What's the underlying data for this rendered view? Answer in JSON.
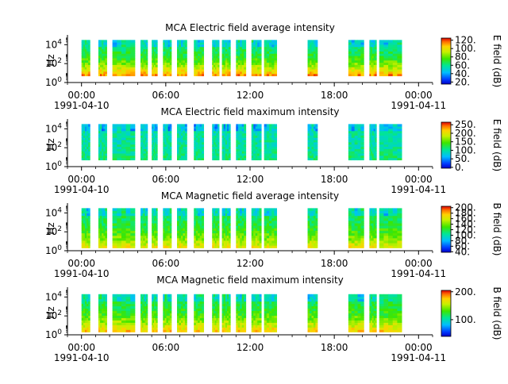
{
  "chart_data": [
    {
      "type": "heatmap",
      "title": "MCA  Electric field average intensity",
      "ylabel": "Hz",
      "colorbar_label": "E field (dB)",
      "colorbar_ticks": [
        "20.",
        "40.",
        "60.",
        "80.",
        "100.",
        "120."
      ],
      "colorbar_range": [
        15,
        125
      ],
      "colormap": "rainbow",
      "x_ticks": [
        "00:00",
        "06:00",
        "12:00",
        "18:00",
        "00:00"
      ],
      "x_dates": [
        "1991-04-10",
        "1991-04-11"
      ],
      "y_ticks": [
        "10^0",
        "10^2",
        "10^4"
      ],
      "y_range_log10": [
        0,
        4.7
      ],
      "xlim_hours": [
        -1,
        25
      ],
      "data_freq_log10_range": [
        0.7,
        4.5
      ],
      "segments_hours": [
        [
          0.0,
          0.6
        ],
        [
          1.2,
          1.8
        ],
        [
          2.2,
          3.8
        ],
        [
          4.2,
          4.7
        ],
        [
          5.0,
          5.4
        ],
        [
          5.8,
          6.4
        ],
        [
          6.8,
          7.5
        ],
        [
          8.0,
          8.7
        ],
        [
          9.3,
          9.8
        ],
        [
          10.0,
          10.6
        ],
        [
          11.0,
          11.7
        ],
        [
          12.1,
          12.8
        ],
        [
          13.0,
          13.9
        ],
        [
          16.1,
          16.8
        ],
        [
          19.0,
          20.1
        ],
        [
          20.5,
          21.0
        ],
        [
          21.2,
          22.8
        ]
      ],
      "base_level": 62,
      "low_freq_level": 112
    },
    {
      "type": "heatmap",
      "title": "MCA  Electric field maximum intensity",
      "ylabel": "Hz",
      "colorbar_label": "E field (dB)",
      "colorbar_ticks": [
        "0.",
        "50.",
        "100.",
        "150.",
        "200.",
        "250."
      ],
      "colorbar_range": [
        -5,
        265
      ],
      "colormap": "rainbow",
      "x_ticks": [
        "00:00",
        "06:00",
        "12:00",
        "18:00",
        "00:00"
      ],
      "x_dates": [
        "1991-04-10",
        "1991-04-11"
      ],
      "y_ticks": [
        "10^0",
        "10^2",
        "10^4"
      ],
      "y_range_log10": [
        0,
        4.7
      ],
      "xlim_hours": [
        -1,
        25
      ],
      "data_freq_log10_range": [
        0.7,
        4.5
      ],
      "segments_hours": [
        [
          0.0,
          0.6
        ],
        [
          1.2,
          1.8
        ],
        [
          2.2,
          3.8
        ],
        [
          4.2,
          4.7
        ],
        [
          5.0,
          5.4
        ],
        [
          5.8,
          6.4
        ],
        [
          6.8,
          7.5
        ],
        [
          8.0,
          8.7
        ],
        [
          9.3,
          9.8
        ],
        [
          10.0,
          10.6
        ],
        [
          11.0,
          11.7
        ],
        [
          12.1,
          12.8
        ],
        [
          13.0,
          13.9
        ],
        [
          16.1,
          16.8
        ],
        [
          19.0,
          20.1
        ],
        [
          20.5,
          21.0
        ],
        [
          21.2,
          22.8
        ]
      ],
      "base_level": 95,
      "low_freq_level": 110
    },
    {
      "type": "heatmap",
      "title": "MCA  Magnetic field average intensity",
      "ylabel": "Hz",
      "colorbar_label": "B field (dB)",
      "colorbar_ticks": [
        "40.",
        "60.",
        "80.",
        "100.",
        "120.",
        "140.",
        "160.",
        "180.",
        "200."
      ],
      "colorbar_range": [
        38,
        205
      ],
      "colormap": "rainbow",
      "x_ticks": [
        "00:00",
        "06:00",
        "12:00",
        "18:00",
        "00:00"
      ],
      "x_dates": [
        "1991-04-10",
        "1991-04-11"
      ],
      "y_ticks": [
        "10^0",
        "10^2",
        "10^4"
      ],
      "y_range_log10": [
        0,
        4.7
      ],
      "xlim_hours": [
        -1,
        25
      ],
      "data_freq_log10_range": [
        0.3,
        4.5
      ],
      "segments_hours": [
        [
          0.0,
          0.6
        ],
        [
          1.2,
          1.8
        ],
        [
          2.2,
          3.8
        ],
        [
          4.2,
          4.7
        ],
        [
          5.0,
          5.4
        ],
        [
          5.8,
          6.4
        ],
        [
          6.8,
          7.5
        ],
        [
          8.0,
          8.7
        ],
        [
          9.3,
          9.8
        ],
        [
          10.0,
          10.6
        ],
        [
          11.0,
          11.7
        ],
        [
          12.1,
          12.8
        ],
        [
          13.0,
          13.9
        ],
        [
          16.1,
          16.8
        ],
        [
          19.0,
          20.1
        ],
        [
          20.5,
          21.0
        ],
        [
          21.2,
          22.8
        ]
      ],
      "base_level": 112,
      "low_freq_level": 165
    },
    {
      "type": "heatmap",
      "title": "MCA  Magnetic field maximum intensity",
      "ylabel": "Hz",
      "colorbar_label": "B field (dB)",
      "colorbar_ticks": [
        "100.",
        "200."
      ],
      "colorbar_range": [
        40,
        205
      ],
      "colormap": "rainbow",
      "x_ticks": [
        "00:00",
        "06:00",
        "12:00",
        "18:00",
        "00:00"
      ],
      "x_dates": [
        "1991-04-10",
        "1991-04-11"
      ],
      "y_ticks": [
        "10^0",
        "10^2",
        "10^4"
      ],
      "y_range_log10": [
        0,
        4.7
      ],
      "xlim_hours": [
        -1,
        25
      ],
      "data_freq_log10_range": [
        0.3,
        4.3
      ],
      "segments_hours": [
        [
          0.0,
          0.6
        ],
        [
          1.2,
          1.8
        ],
        [
          2.2,
          3.8
        ],
        [
          4.2,
          4.7
        ],
        [
          5.0,
          5.4
        ],
        [
          5.8,
          6.4
        ],
        [
          6.8,
          7.5
        ],
        [
          8.0,
          8.7
        ],
        [
          9.3,
          9.8
        ],
        [
          10.0,
          10.6
        ],
        [
          11.0,
          11.7
        ],
        [
          12.1,
          12.8
        ],
        [
          13.0,
          13.9
        ],
        [
          16.1,
          16.8
        ],
        [
          19.0,
          20.1
        ],
        [
          20.5,
          21.0
        ],
        [
          21.2,
          22.8
        ]
      ],
      "base_level": 115,
      "low_freq_level": 175
    }
  ]
}
